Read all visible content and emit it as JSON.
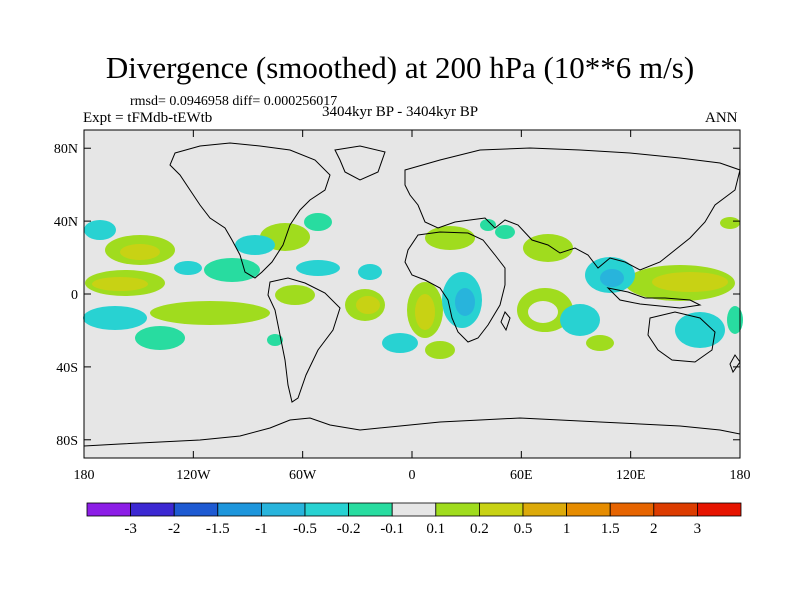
{
  "title": "Divergence (smoothed) at 200 hPa (10**6 m/s)",
  "stats": "rmsd= 0.0946958 diff= 0.000256017",
  "experiment": "Expt = tFMdb-tEWtb",
  "period": "3404kyr BP - 3404kyr BP",
  "season": "ANN",
  "lat_ticks": [
    {
      "label": "80N",
      "lat": 80
    },
    {
      "label": "40N",
      "lat": 40
    },
    {
      "label": "0",
      "lat": 0
    },
    {
      "label": "40S",
      "lat": -40
    },
    {
      "label": "80S",
      "lat": -80
    }
  ],
  "lon_ticks": [
    {
      "label": "180",
      "lon": -180
    },
    {
      "label": "120W",
      "lon": -120
    },
    {
      "label": "60W",
      "lon": -60
    },
    {
      "label": "0",
      "lon": 0
    },
    {
      "label": "60E",
      "lon": 60
    },
    {
      "label": "120E",
      "lon": 120
    },
    {
      "label": "180",
      "lon": 180
    }
  ],
  "colorbar": {
    "colors": [
      "#8c1ee6",
      "#3c28d2",
      "#1e5ad2",
      "#1e96dc",
      "#28b4dc",
      "#28d2d2",
      "#28dca0",
      "#e6e6e6",
      "#a0dc1e",
      "#c8d214",
      "#dcaa0a",
      "#e68c00",
      "#e66400",
      "#dc3c00",
      "#e61400"
    ],
    "labels": [
      "-3",
      "-2",
      "-1.5",
      "-1",
      "-0.5",
      "-0.2",
      "-0.1",
      "0.1",
      "0.2",
      "0.5",
      "1",
      "1.5",
      "2",
      "3"
    ]
  },
  "field_colors": {
    "ocean_bg": "#e6e6e6",
    "pos_light": "#a0dc1e",
    "pos_mid": "#c8d214",
    "pos_strong": "#dcaa0a",
    "neg_light": "#28dca0",
    "neg_mid": "#28d2d2",
    "neg_strong": "#28b4dc"
  }
}
